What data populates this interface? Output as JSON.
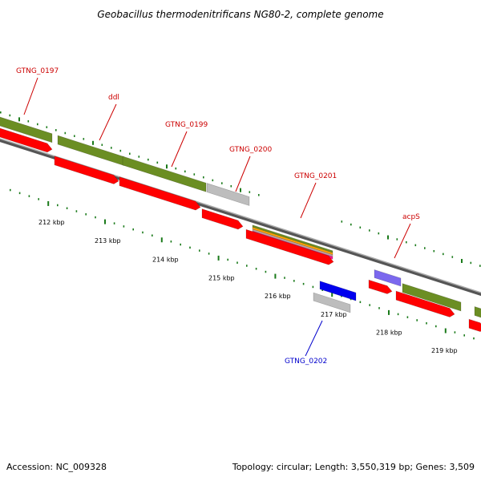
{
  "title": "Geobacillus thermodenitrificans NG80-2, complete genome",
  "footer": {
    "accession": "Accession: NC_009328",
    "topology": "Topology: circular; Length: 3,550,319 bp; Genes: 3,509"
  },
  "colors": {
    "olive": "#6b8e23",
    "red": "#ff0000",
    "gray": "#bdbdbd",
    "blue": "#0000ee",
    "purple": "#7b68ee",
    "orange": "#ffa500",
    "magenta": "#ff1493",
    "label_red": "#cc0000",
    "label_blue": "#0000cc",
    "tick": "#1a7a1a",
    "backbone": "#808080"
  },
  "kbp_labels": [
    "212 kbp",
    "213 kbp",
    "214 kbp",
    "215 kbp",
    "216 kbp",
    "217 kbp",
    "218 kbp",
    "219 kbp"
  ],
  "gene_labels": [
    {
      "id": "gtng0197",
      "text": "GTNG_0197",
      "color": "red"
    },
    {
      "id": "ddl",
      "text": "ddl",
      "color": "red"
    },
    {
      "id": "gtng0199",
      "text": "GTNG_0199",
      "color": "red"
    },
    {
      "id": "gtng0200",
      "text": "GTNG_0200",
      "color": "red"
    },
    {
      "id": "gtng0201",
      "text": "GTNG_0201",
      "color": "red"
    },
    {
      "id": "acps",
      "text": "acpS",
      "color": "red"
    },
    {
      "id": "gtng0202",
      "text": "GTNG_0202",
      "color": "blue"
    }
  ]
}
